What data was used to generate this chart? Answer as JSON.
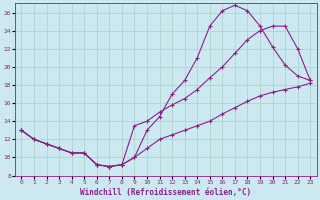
{
  "xlabel": "Windchill (Refroidissement éolien,°C)",
  "bg_color": "#cce8f0",
  "grid_color": "#b0d4cc",
  "line_color": "#882288",
  "xlim": [
    -0.5,
    23.5
  ],
  "ylim": [
    8,
    27
  ],
  "xticks": [
    0,
    1,
    2,
    3,
    4,
    5,
    6,
    7,
    8,
    9,
    10,
    11,
    12,
    13,
    14,
    15,
    16,
    17,
    18,
    19,
    20,
    21,
    22,
    23
  ],
  "yticks": [
    8,
    10,
    12,
    14,
    16,
    18,
    20,
    22,
    24,
    26
  ],
  "line1_x": [
    0,
    1,
    2,
    3,
    4,
    5,
    6,
    7,
    8,
    9,
    10,
    11,
    12,
    13,
    14,
    15,
    16,
    17,
    18,
    19,
    20,
    21,
    22,
    23
  ],
  "line1_y": [
    13,
    12,
    11.5,
    11,
    10.5,
    10.5,
    9.2,
    9.0,
    9.2,
    10,
    13,
    14.5,
    17,
    18.5,
    21,
    24.5,
    26.2,
    26.8,
    26.2,
    24.5,
    22.2,
    20.2,
    19,
    18.5
  ],
  "line2_x": [
    0,
    1,
    2,
    3,
    4,
    5,
    6,
    7,
    8,
    9,
    10,
    11,
    12,
    13,
    14,
    15,
    16,
    17,
    18,
    19,
    20,
    21,
    22,
    23
  ],
  "line2_y": [
    13,
    12,
    11.5,
    11,
    10.5,
    10.5,
    9.2,
    9.0,
    9.2,
    13.5,
    14,
    15,
    15.8,
    16.5,
    17.5,
    18.8,
    20,
    21.5,
    23,
    24,
    24.5,
    24.5,
    22,
    18.5
  ],
  "line3_x": [
    0,
    1,
    2,
    3,
    4,
    5,
    6,
    7,
    8,
    9,
    10,
    11,
    12,
    13,
    14,
    15,
    16,
    17,
    18,
    19,
    20,
    21,
    22,
    23
  ],
  "line3_y": [
    13,
    12,
    11.5,
    11,
    10.5,
    10.5,
    9.2,
    9.0,
    9.2,
    10,
    11,
    12,
    12.5,
    13,
    13.5,
    14,
    14.8,
    15.5,
    16.2,
    16.8,
    17.2,
    17.5,
    17.8,
    18.2
  ],
  "marker": "+",
  "markersize": 2.5,
  "linewidth": 0.8,
  "tick_fontsize": 4.5,
  "xlabel_fontsize": 5.5
}
